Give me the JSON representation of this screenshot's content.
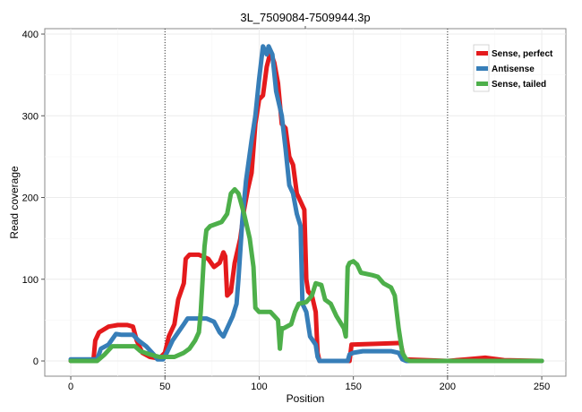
{
  "chart_data": {
    "type": "line",
    "title": "3L_7509084-7509944.3p",
    "xlabel": "Position",
    "ylabel": "Read coverage",
    "xlim": [
      -13.8,
      262.8
    ],
    "ylim": [
      -18.6,
      406.6
    ],
    "xticks": [
      0,
      50,
      100,
      150,
      200,
      250
    ],
    "yticks": [
      0,
      100,
      200,
      300,
      400
    ],
    "grid": true,
    "vlines": [
      50,
      200
    ],
    "legend_position": "top-right",
    "series": [
      {
        "name": "Sense, perfect",
        "color": "#E41A1C",
        "x": [
          0,
          12,
          13,
          15,
          20,
          25,
          30,
          33,
          35,
          38,
          42,
          47,
          50,
          52,
          55,
          57,
          60,
          61,
          63,
          68,
          70,
          73,
          76,
          79,
          81,
          82,
          83,
          85,
          87,
          88,
          90,
          92,
          94,
          96,
          98,
          100,
          102,
          104,
          106,
          108,
          110,
          112,
          114,
          116,
          118,
          120,
          122,
          124,
          125,
          126,
          128,
          130,
          131,
          132,
          148,
          149,
          174,
          175,
          177,
          200,
          210,
          220,
          230,
          250
        ],
        "y": [
          0,
          0,
          25,
          35,
          42,
          44,
          44,
          42,
          25,
          10,
          5,
          3,
          10,
          30,
          45,
          75,
          95,
          125,
          130,
          130,
          128,
          125,
          115,
          120,
          133,
          128,
          80,
          85,
          120,
          130,
          150,
          185,
          210,
          230,
          290,
          320,
          325,
          360,
          378,
          365,
          340,
          290,
          285,
          250,
          240,
          205,
          195,
          185,
          100,
          85,
          80,
          60,
          10,
          0,
          0,
          20,
          22,
          22,
          2,
          0,
          2,
          4,
          1,
          0
        ]
      },
      {
        "name": "Antisense",
        "color": "#377EB8",
        "x": [
          0,
          14,
          16,
          20,
          24,
          27,
          33,
          36,
          40,
          44,
          46,
          49,
          51,
          54,
          57,
          60,
          62,
          72,
          76,
          79,
          81,
          83,
          86,
          88,
          89,
          91,
          93,
          96,
          98,
          100,
          102,
          104,
          105,
          107,
          109,
          111,
          112,
          114,
          116,
          118,
          120,
          122,
          123,
          125,
          127,
          130,
          131,
          132,
          147,
          148,
          150,
          155,
          170,
          174,
          176,
          178,
          250
        ],
        "y": [
          2,
          2,
          15,
          20,
          33,
          32,
          32,
          25,
          18,
          8,
          2,
          2,
          10,
          25,
          35,
          45,
          52,
          52,
          48,
          35,
          30,
          40,
          55,
          70,
          100,
          170,
          220,
          270,
          300,
          345,
          385,
          375,
          385,
          375,
          330,
          310,
          300,
          260,
          215,
          205,
          180,
          165,
          70,
          60,
          30,
          20,
          5,
          0,
          0,
          8,
          10,
          12,
          12,
          10,
          2,
          0,
          0
        ]
      },
      {
        "name": "Sense, tailed",
        "color": "#4DAF4A",
        "x": [
          0,
          14,
          18,
          22,
          34,
          37,
          42,
          47,
          55,
          60,
          63,
          66,
          68,
          69,
          70,
          71,
          72,
          74,
          80,
          83,
          85,
          87,
          89,
          92,
          95,
          97,
          98,
          100,
          106,
          108,
          110,
          111,
          112,
          113,
          117,
          119,
          121,
          125,
          128,
          130,
          133,
          135,
          138,
          141,
          145,
          146,
          147,
          148,
          150,
          152,
          154,
          160,
          163,
          166,
          170,
          172,
          174,
          176,
          178,
          180,
          250
        ],
        "y": [
          0,
          0,
          8,
          18,
          18,
          12,
          8,
          5,
          5,
          10,
          15,
          25,
          35,
          60,
          100,
          140,
          160,
          165,
          170,
          180,
          205,
          210,
          205,
          180,
          150,
          115,
          65,
          60,
          60,
          55,
          50,
          15,
          40,
          40,
          45,
          60,
          70,
          72,
          80,
          95,
          93,
          75,
          70,
          55,
          40,
          30,
          115,
          120,
          122,
          118,
          108,
          105,
          103,
          95,
          90,
          80,
          40,
          10,
          2,
          0,
          0
        ]
      }
    ]
  }
}
